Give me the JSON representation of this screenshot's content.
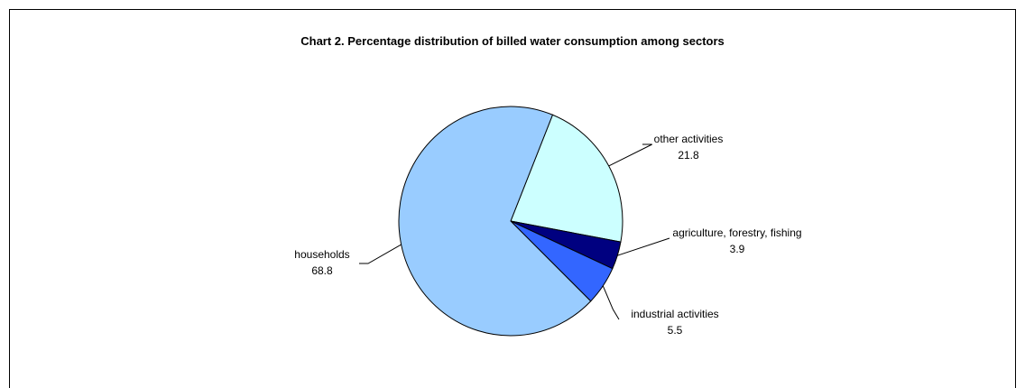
{
  "chart_data": {
    "type": "pie",
    "title": "Chart 2.  Percentage distribution of billed water consumption among sectors",
    "slices": [
      {
        "label": "other activities",
        "value": 21.8,
        "value_label": "21.8",
        "color": "#ccffff"
      },
      {
        "label": "agriculture, forestry, fishing",
        "value": 3.9,
        "value_label": "3.9",
        "color": "#000080"
      },
      {
        "label": "industrial activities",
        "value": 5.5,
        "value_label": "5.5",
        "color": "#3366ff"
      },
      {
        "label": "households",
        "value": 68.8,
        "value_label": "68.8",
        "color": "#99ccff"
      }
    ]
  }
}
